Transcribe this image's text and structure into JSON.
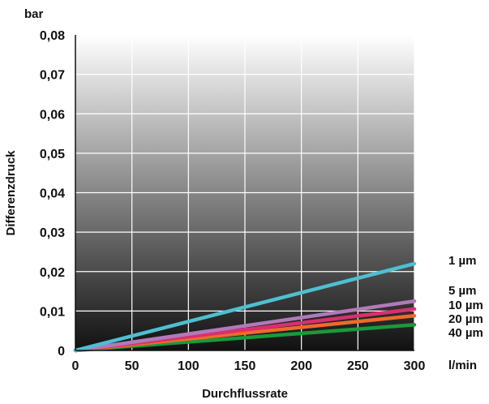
{
  "chart_data": {
    "type": "line",
    "title": "",
    "xlabel": "Durchflussrate",
    "ylabel": "Differenzdruck",
    "x_unit": "l/min",
    "y_unit": "bar",
    "xlim": [
      0,
      300
    ],
    "ylim": [
      0,
      0.08
    ],
    "x_ticks": [
      0,
      50,
      100,
      150,
      200,
      250,
      300
    ],
    "x_tick_labels": [
      "0",
      "50",
      "100",
      "150",
      "200",
      "250",
      "300"
    ],
    "y_ticks": [
      0,
      0.01,
      0.02,
      0.03,
      0.04,
      0.05,
      0.06,
      0.07,
      0.08
    ],
    "y_tick_labels": [
      "0",
      "0,01",
      "0,02",
      "0,03",
      "0,04",
      "0,05",
      "0,06",
      "0,07",
      "0,08"
    ],
    "grid": true,
    "background": "vertical gradient white (top) to black (bottom)",
    "series": [
      {
        "name": "1 µm",
        "color": "#4dc0d0",
        "x": [
          0,
          300
        ],
        "y": [
          0,
          0.022
        ]
      },
      {
        "name": "5 µm",
        "color": "#b07ab8",
        "x": [
          0,
          300
        ],
        "y": [
          0,
          0.0125
        ]
      },
      {
        "name": "10 µm",
        "color": "#d8306e",
        "x": [
          0,
          300
        ],
        "y": [
          0,
          0.0105
        ]
      },
      {
        "name": "20 µm",
        "color": "#f06a2a",
        "x": [
          0,
          300
        ],
        "y": [
          0,
          0.0088
        ]
      },
      {
        "name": "40 µm",
        "color": "#1a9a3a",
        "x": [
          0,
          300
        ],
        "y": [
          0,
          0.0065
        ]
      }
    ]
  }
}
